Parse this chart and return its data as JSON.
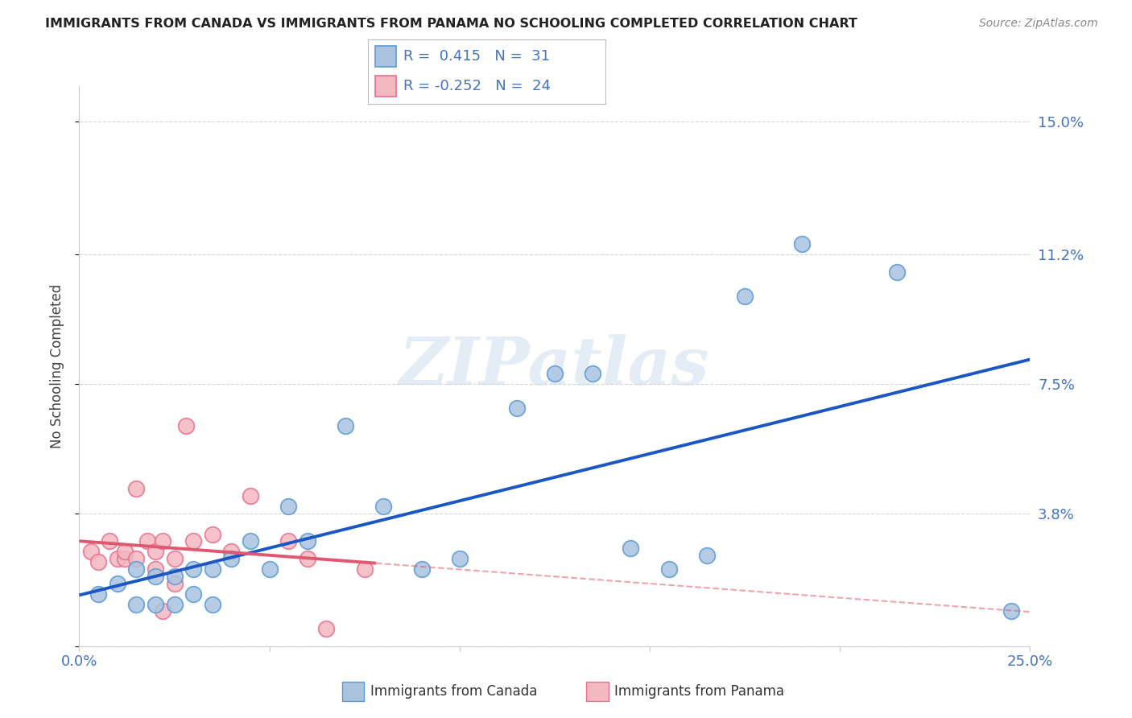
{
  "title": "IMMIGRANTS FROM CANADA VS IMMIGRANTS FROM PANAMA NO SCHOOLING COMPLETED CORRELATION CHART",
  "source": "Source: ZipAtlas.com",
  "ylabel": "No Schooling Completed",
  "xlim": [
    0.0,
    0.25
  ],
  "ylim": [
    0.0,
    0.16
  ],
  "yticks": [
    0.0,
    0.038,
    0.075,
    0.112,
    0.15
  ],
  "ytick_labels": [
    "",
    "3.8%",
    "7.5%",
    "11.2%",
    "15.0%"
  ],
  "xticks": [
    0.0,
    0.05,
    0.1,
    0.15,
    0.2,
    0.25
  ],
  "xtick_labels": [
    "0.0%",
    "",
    "",
    "",
    "",
    "25.0%"
  ],
  "grid_color": "#cccccc",
  "background_color": "#ffffff",
  "canada_color": "#aac4e0",
  "canada_edge_color": "#5b9bd5",
  "panama_color": "#f4b8c1",
  "panama_edge_color": "#e87090",
  "canada_line_color": "#1a56c4",
  "panama_line_color": "#e05870",
  "legend_text_color": "#4472c4",
  "axis_label_color": "#4472c4",
  "title_color": "#222222",
  "source_color": "#888888",
  "watermark": "ZIPatlas",
  "canada_scatter_x": [
    0.005,
    0.01,
    0.015,
    0.015,
    0.02,
    0.02,
    0.025,
    0.025,
    0.03,
    0.03,
    0.035,
    0.035,
    0.04,
    0.045,
    0.05,
    0.055,
    0.06,
    0.07,
    0.08,
    0.09,
    0.1,
    0.115,
    0.125,
    0.135,
    0.145,
    0.155,
    0.165,
    0.175,
    0.19,
    0.215,
    0.245
  ],
  "canada_scatter_y": [
    0.015,
    0.018,
    0.022,
    0.012,
    0.02,
    0.012,
    0.02,
    0.012,
    0.022,
    0.015,
    0.022,
    0.012,
    0.025,
    0.03,
    0.022,
    0.04,
    0.03,
    0.063,
    0.04,
    0.022,
    0.025,
    0.068,
    0.078,
    0.078,
    0.028,
    0.022,
    0.026,
    0.1,
    0.115,
    0.107,
    0.01
  ],
  "panama_scatter_x": [
    0.003,
    0.005,
    0.008,
    0.01,
    0.012,
    0.012,
    0.015,
    0.015,
    0.018,
    0.02,
    0.02,
    0.022,
    0.022,
    0.025,
    0.025,
    0.028,
    0.03,
    0.035,
    0.04,
    0.045,
    0.055,
    0.06,
    0.065,
    0.075
  ],
  "panama_scatter_y": [
    0.027,
    0.024,
    0.03,
    0.025,
    0.025,
    0.027,
    0.045,
    0.025,
    0.03,
    0.027,
    0.022,
    0.03,
    0.01,
    0.025,
    0.018,
    0.063,
    0.03,
    0.032,
    0.027,
    0.043,
    0.03,
    0.025,
    0.005,
    0.022
  ]
}
